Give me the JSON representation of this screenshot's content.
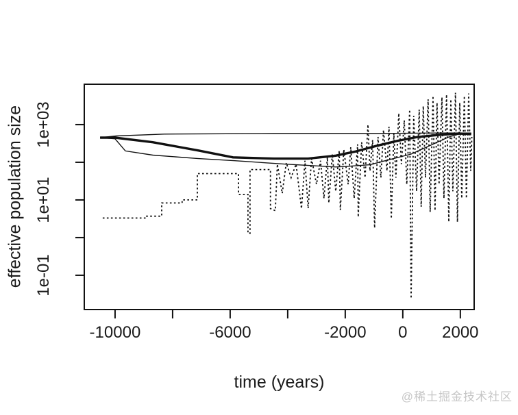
{
  "page": {
    "background": "#ffffff",
    "watermark": "@稀土掘金技术社区"
  },
  "chart_data": {
    "type": "line",
    "title": "",
    "xlabel": "time (years)",
    "ylabel": "effective population size",
    "grid": false,
    "legend": null,
    "frame": "full-box",
    "line_color": "#111111",
    "x_axis": {
      "scale": "linear",
      "xlim": [
        -11070,
        2480
      ],
      "ticks": [
        {
          "value": -10000,
          "label": "-10000"
        },
        {
          "value": -8000,
          "label": ""
        },
        {
          "value": -6000,
          "label": "-6000"
        },
        {
          "value": -4000,
          "label": ""
        },
        {
          "value": -2000,
          "label": "-2000"
        },
        {
          "value": 0,
          "label": "0"
        },
        {
          "value": 2000,
          "label": "2000"
        }
      ]
    },
    "y_axis": {
      "scale": "log",
      "ylim": [
        0.0123,
        11800
      ],
      "ticks": [
        {
          "value": 1000,
          "label": "1e+03"
        },
        {
          "value": 100,
          "label": ""
        },
        {
          "value": 10,
          "label": "1e+01"
        },
        {
          "value": 1,
          "label": ""
        },
        {
          "value": 0.1,
          "label": "1e-01"
        }
      ]
    },
    "series": [
      {
        "name": "thick-solid-median",
        "style": "solid",
        "width": 3.4,
        "points": [
          [
            -10520,
            450
          ],
          [
            -10000,
            450
          ],
          [
            -8690,
            340
          ],
          [
            -7100,
            205
          ],
          [
            -5900,
            135
          ],
          [
            -4480,
            125
          ],
          [
            -3290,
            125
          ],
          [
            -2330,
            150
          ],
          [
            -1620,
            195
          ],
          [
            -900,
            275
          ],
          [
            -190,
            370
          ],
          [
            520,
            470
          ],
          [
            1240,
            530
          ],
          [
            1950,
            580
          ],
          [
            2380,
            560
          ]
        ]
      },
      {
        "name": "thin-solid-upper",
        "style": "solid",
        "width": 1.4,
        "points": [
          [
            -10520,
            450
          ],
          [
            -9950,
            500
          ],
          [
            -8290,
            560
          ],
          [
            -4480,
            580
          ],
          [
            -900,
            580
          ],
          [
            1240,
            600
          ],
          [
            2380,
            600
          ]
        ]
      },
      {
        "name": "thin-solid-lower",
        "style": "solid",
        "width": 1.4,
        "points": [
          [
            -10520,
            450
          ],
          [
            -10000,
            420
          ],
          [
            -9640,
            200
          ],
          [
            -8690,
            155
          ],
          [
            -7100,
            125
          ],
          [
            -5830,
            110
          ],
          [
            -4070,
            89
          ],
          [
            -2330,
            75
          ],
          [
            -2020,
            77
          ],
          [
            -1140,
            86
          ],
          [
            -670,
            107
          ],
          [
            290,
            165
          ],
          [
            1000,
            290
          ],
          [
            1600,
            470
          ],
          [
            1950,
            560
          ]
        ]
      },
      {
        "name": "dotted-stepwise",
        "style": "dotted",
        "width": 1.8,
        "points": [
          [
            -10430,
            3.3
          ],
          [
            -8930,
            3.3
          ],
          [
            -8930,
            3.7
          ],
          [
            -8380,
            3.7
          ],
          [
            -8380,
            8.3
          ],
          [
            -7670,
            8.3
          ],
          [
            -7670,
            10
          ],
          [
            -7140,
            10
          ],
          [
            -7140,
            50
          ],
          [
            -5710,
            50
          ],
          [
            -5710,
            14
          ],
          [
            -5380,
            14
          ],
          [
            -5380,
            1.3
          ],
          [
            -5310,
            1.3
          ],
          [
            -5310,
            64
          ],
          [
            -4600,
            64
          ],
          [
            -4600,
            5.9
          ],
          [
            -4430,
            5.2
          ],
          [
            -4360,
            89
          ],
          [
            -4190,
            15
          ],
          [
            -4050,
            97
          ],
          [
            -3880,
            39
          ],
          [
            -3710,
            89
          ],
          [
            -3520,
            5.9
          ],
          [
            -3400,
            110
          ],
          [
            -3290,
            6
          ],
          [
            -3170,
            125
          ],
          [
            -3000,
            26
          ],
          [
            -2860,
            110
          ],
          [
            -2740,
            11
          ],
          [
            -2620,
            135
          ],
          [
            -2570,
            8.3
          ],
          [
            -2450,
            165
          ],
          [
            -2330,
            17
          ],
          [
            -2210,
            205
          ],
          [
            -2170,
            5.4
          ],
          [
            -2050,
            220
          ],
          [
            -1900,
            26
          ],
          [
            -1810,
            250
          ],
          [
            -1690,
            11
          ],
          [
            -1570,
            300
          ],
          [
            -1550,
            3.5
          ],
          [
            -1430,
            340
          ],
          [
            -1310,
            39
          ],
          [
            -1210,
            1000
          ],
          [
            -1140,
            59
          ],
          [
            -1050,
            390
          ],
          [
            -980,
            1.8
          ],
          [
            -860,
            470
          ],
          [
            -760,
            39
          ],
          [
            -670,
            720
          ],
          [
            -550,
            59
          ],
          [
            -480,
            880
          ],
          [
            -400,
            3.2
          ],
          [
            -310,
            580
          ],
          [
            -240,
            39
          ],
          [
            -140,
            2000
          ],
          [
            -50,
            89
          ],
          [
            50,
            1300
          ],
          [
            140,
            26
          ],
          [
            240,
            2500
          ],
          [
            290,
            0.024
          ],
          [
            380,
            1700
          ],
          [
            480,
            17
          ],
          [
            570,
            2500
          ],
          [
            640,
            6.6
          ],
          [
            710,
            3100
          ],
          [
            790,
            39
          ],
          [
            880,
            4700
          ],
          [
            950,
            4.8
          ],
          [
            1050,
            5800
          ],
          [
            1120,
            5.2
          ],
          [
            1190,
            3800
          ],
          [
            1260,
            26
          ],
          [
            1360,
            5300
          ],
          [
            1430,
            11
          ],
          [
            1520,
            6300
          ],
          [
            1600,
            2.6
          ],
          [
            1670,
            4700
          ],
          [
            1740,
            17
          ],
          [
            1830,
            7000
          ],
          [
            1900,
            2.6
          ],
          [
            1980,
            3800
          ],
          [
            2050,
            11
          ],
          [
            2140,
            5800
          ],
          [
            2210,
            11
          ],
          [
            2290,
            6700
          ],
          [
            2360,
            59
          ],
          [
            2400,
            470
          ]
        ]
      }
    ]
  }
}
